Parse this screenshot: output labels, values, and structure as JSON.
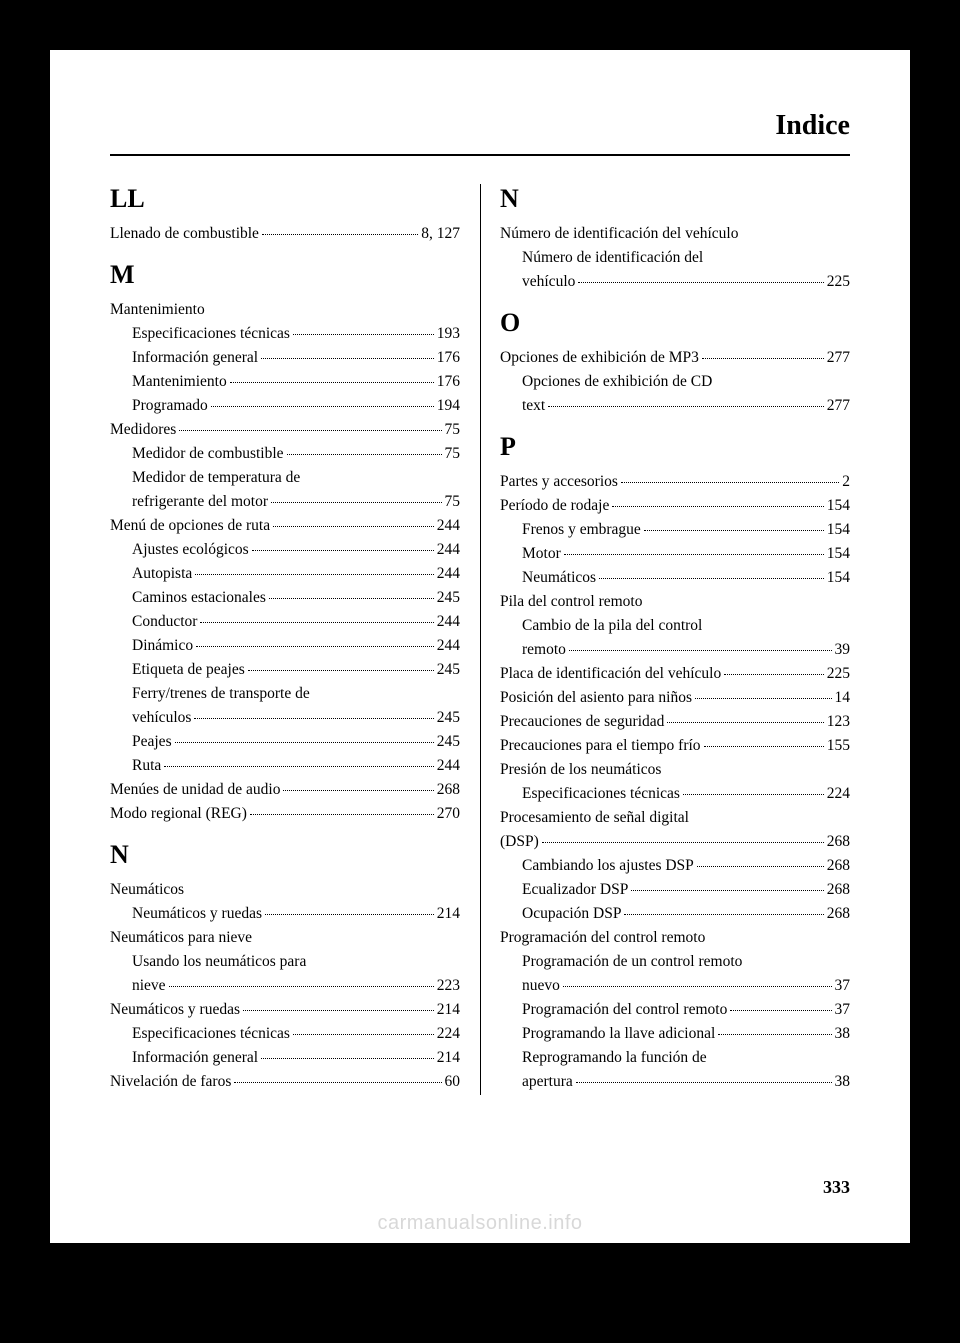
{
  "header": {
    "title": "Indice"
  },
  "page_number": "333",
  "watermark": "carmanualsonline.info",
  "left": [
    {
      "type": "letter",
      "text": "LL"
    },
    {
      "type": "entry",
      "label": "Llenado de combustible",
      "page": "8, 127"
    },
    {
      "type": "letter",
      "text": "M"
    },
    {
      "type": "entry",
      "label": "Mantenimiento",
      "page": "",
      "nodots": true
    },
    {
      "type": "entry",
      "sub": true,
      "label": "Especificaciones técnicas",
      "page": "193"
    },
    {
      "type": "entry",
      "sub": true,
      "label": "Información general",
      "page": "176"
    },
    {
      "type": "entry",
      "sub": true,
      "label": "Mantenimiento",
      "page": "176"
    },
    {
      "type": "entry",
      "sub": true,
      "label": "Programado",
      "page": "194"
    },
    {
      "type": "entry",
      "label": "Medidores",
      "page": "75"
    },
    {
      "type": "entry",
      "sub": true,
      "label": "Medidor de combustible",
      "page": "75"
    },
    {
      "type": "entry",
      "sub": true,
      "label": "Medidor de temperatura de",
      "page": "",
      "nodots": true
    },
    {
      "type": "entry",
      "sub": true,
      "label": "refrigerante del motor",
      "page": "75"
    },
    {
      "type": "entry",
      "label": "Menú de opciones de ruta",
      "page": "244"
    },
    {
      "type": "entry",
      "sub": true,
      "label": "Ajustes ecológicos",
      "page": "244"
    },
    {
      "type": "entry",
      "sub": true,
      "label": "Autopista",
      "page": "244"
    },
    {
      "type": "entry",
      "sub": true,
      "label": "Caminos estacionales",
      "page": "245"
    },
    {
      "type": "entry",
      "sub": true,
      "label": "Conductor",
      "page": "244"
    },
    {
      "type": "entry",
      "sub": true,
      "label": "Dinámico",
      "page": "244"
    },
    {
      "type": "entry",
      "sub": true,
      "label": "Etiqueta de peajes",
      "page": "245"
    },
    {
      "type": "entry",
      "sub": true,
      "label": "Ferry/trenes de transporte de",
      "page": "",
      "nodots": true
    },
    {
      "type": "entry",
      "sub": true,
      "label": "vehículos",
      "page": "245"
    },
    {
      "type": "entry",
      "sub": true,
      "label": "Peajes",
      "page": "245"
    },
    {
      "type": "entry",
      "sub": true,
      "label": "Ruta",
      "page": "244"
    },
    {
      "type": "entry",
      "label": "Menúes de unidad de audio",
      "page": "268"
    },
    {
      "type": "entry",
      "label": "Modo regional (REG)",
      "page": "270"
    },
    {
      "type": "letter",
      "text": "N"
    },
    {
      "type": "entry",
      "label": "Neumáticos",
      "page": "",
      "nodots": true
    },
    {
      "type": "entry",
      "sub": true,
      "label": "Neumáticos y ruedas",
      "page": "214"
    },
    {
      "type": "entry",
      "label": "Neumáticos para nieve",
      "page": "",
      "nodots": true
    },
    {
      "type": "entry",
      "sub": true,
      "label": "Usando los neumáticos para",
      "page": "",
      "nodots": true
    },
    {
      "type": "entry",
      "sub": true,
      "label": "nieve",
      "page": "223"
    },
    {
      "type": "entry",
      "label": "Neumáticos y ruedas",
      "page": "214"
    },
    {
      "type": "entry",
      "sub": true,
      "label": "Especificaciones técnicas",
      "page": "224"
    },
    {
      "type": "entry",
      "sub": true,
      "label": "Información general",
      "page": "214"
    },
    {
      "type": "entry",
      "label": "Nivelación de faros",
      "page": "60"
    }
  ],
  "right": [
    {
      "type": "letter",
      "text": "N"
    },
    {
      "type": "entry",
      "label": "Número de identificación del vehículo",
      "page": "",
      "nodots": true
    },
    {
      "type": "entry",
      "sub": true,
      "label": "Número de identificación del",
      "page": "",
      "nodots": true
    },
    {
      "type": "entry",
      "sub": true,
      "label": "vehículo",
      "page": "225"
    },
    {
      "type": "letter",
      "text": "O"
    },
    {
      "type": "entry",
      "label": "Opciones de exhibición de MP3",
      "page": "277"
    },
    {
      "type": "entry",
      "sub": true,
      "label": "Opciones de exhibición de CD",
      "page": "",
      "nodots": true
    },
    {
      "type": "entry",
      "sub": true,
      "label": "text",
      "page": "277"
    },
    {
      "type": "letter",
      "text": "P"
    },
    {
      "type": "entry",
      "label": "Partes y accesorios",
      "page": "2"
    },
    {
      "type": "entry",
      "label": "Período de rodaje",
      "page": "154"
    },
    {
      "type": "entry",
      "sub": true,
      "label": "Frenos y embrague",
      "page": "154"
    },
    {
      "type": "entry",
      "sub": true,
      "label": "Motor",
      "page": "154"
    },
    {
      "type": "entry",
      "sub": true,
      "label": "Neumáticos",
      "page": "154"
    },
    {
      "type": "entry",
      "label": "Pila del control remoto",
      "page": "",
      "nodots": true
    },
    {
      "type": "entry",
      "sub": true,
      "label": "Cambio de la pila del control",
      "page": "",
      "nodots": true
    },
    {
      "type": "entry",
      "sub": true,
      "label": "remoto",
      "page": "39"
    },
    {
      "type": "entry",
      "label": "Placa de identificación del vehículo",
      "page": "225"
    },
    {
      "type": "entry",
      "label": "Posición del asiento para niños",
      "page": "14"
    },
    {
      "type": "entry",
      "label": "Precauciones de seguridad",
      "page": "123"
    },
    {
      "type": "entry",
      "label": "Precauciones para el tiempo frío",
      "page": "155"
    },
    {
      "type": "entry",
      "label": "Presión de los neumáticos",
      "page": "",
      "nodots": true
    },
    {
      "type": "entry",
      "sub": true,
      "label": "Especificaciones técnicas",
      "page": "224"
    },
    {
      "type": "entry",
      "label": "Procesamiento de señal digital",
      "page": "",
      "nodots": true
    },
    {
      "type": "entry",
      "label": "(DSP)",
      "page": "268"
    },
    {
      "type": "entry",
      "sub": true,
      "label": "Cambiando los ajustes DSP",
      "page": "268"
    },
    {
      "type": "entry",
      "sub": true,
      "label": "Ecualizador DSP",
      "page": "268"
    },
    {
      "type": "entry",
      "sub": true,
      "label": "Ocupación DSP",
      "page": "268"
    },
    {
      "type": "entry",
      "label": "Programación del control remoto",
      "page": "",
      "nodots": true
    },
    {
      "type": "entry",
      "sub": true,
      "label": "Programación de un control remoto",
      "page": "",
      "nodots": true
    },
    {
      "type": "entry",
      "sub": true,
      "label": "nuevo",
      "page": "37"
    },
    {
      "type": "entry",
      "sub": true,
      "label": "Programación del control remoto",
      "page": "37"
    },
    {
      "type": "entry",
      "sub": true,
      "label": "Programando la llave adicional",
      "page": "38"
    },
    {
      "type": "entry",
      "sub": true,
      "label": "Reprogramando la función de",
      "page": "",
      "nodots": true
    },
    {
      "type": "entry",
      "sub": true,
      "label": "apertura",
      "page": "38"
    }
  ]
}
